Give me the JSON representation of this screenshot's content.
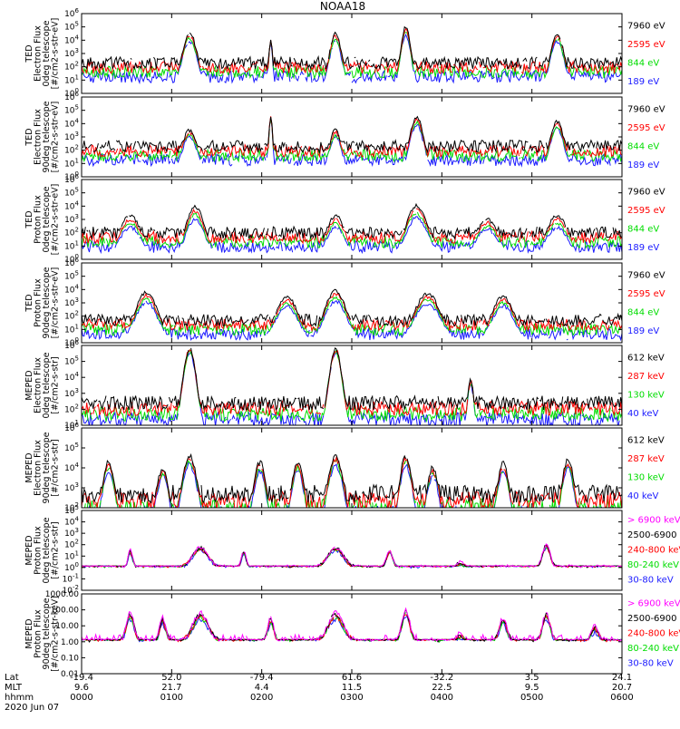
{
  "title": "NOAA18",
  "colors": {
    "blue": "#1a1aff",
    "red": "#ff0000",
    "green": "#00dd00",
    "black": "#000000",
    "magenta": "#ff00ff"
  },
  "chart_data": [
    {
      "type": "line",
      "ylabel_lines": [
        "TED",
        "Electron Flux",
        "0deg telescope",
        "[#/cm2-s-str-eV]"
      ],
      "y_ticks": [
        "10^0",
        "10^1",
        "10^2",
        "10^3",
        "10^4",
        "10^5",
        "10^6"
      ],
      "ylim": [
        1,
        1000000
      ],
      "log_scale": true,
      "series": [
        {
          "name": "7960 eV",
          "color": "#000000"
        },
        {
          "name": "2595 eV",
          "color": "#ff0000"
        },
        {
          "name": "844 eV",
          "color": "#00dd00"
        },
        {
          "name": "189 eV",
          "color": "#1a1aff"
        }
      ],
      "baseline": 2.3,
      "peaks": [
        [
          0.2,
          4.5,
          0.022,
          0.8
        ],
        [
          0.35,
          4.0,
          0.006,
          0.3
        ],
        [
          0.47,
          4.5,
          0.018,
          0.8
        ],
        [
          0.6,
          5.0,
          0.015,
          0.8
        ],
        [
          0.88,
          4.5,
          0.02,
          0.8
        ]
      ]
    },
    {
      "type": "line",
      "ylabel_lines": [
        "TED",
        "Electron Flux",
        "90deg telescope",
        "[#/cm2-s-str-eV]"
      ],
      "y_ticks": [
        "10^0",
        "10^1",
        "10^2",
        "10^3",
        "10^4",
        "10^5",
        "10^6"
      ],
      "ylim": [
        1,
        1000000
      ],
      "log_scale": true,
      "series": [
        {
          "name": "7960 eV",
          "color": "#000000"
        },
        {
          "name": "2595 eV",
          "color": "#ff0000"
        },
        {
          "name": "844 eV",
          "color": "#00dd00"
        },
        {
          "name": "189 eV",
          "color": "#1a1aff"
        }
      ],
      "baseline": 2.3,
      "peaks": [
        [
          0.2,
          3.5,
          0.022,
          0.7
        ],
        [
          0.35,
          4.5,
          0.006,
          0.4
        ],
        [
          0.47,
          3.5,
          0.018,
          0.7
        ],
        [
          0.62,
          4.5,
          0.02,
          0.8
        ],
        [
          0.88,
          4.2,
          0.02,
          0.8
        ]
      ]
    },
    {
      "type": "line",
      "ylabel_lines": [
        "TED",
        "Proton Flux",
        "0deg telescope",
        "[#/cm2-s-str-eV]"
      ],
      "y_ticks": [
        "10^0",
        "10^1",
        "10^2",
        "10^3",
        "10^4",
        "10^5",
        "10^6"
      ],
      "ylim": [
        1,
        1000000
      ],
      "log_scale": true,
      "series": [
        {
          "name": "7960 eV",
          "color": "#000000"
        },
        {
          "name": "2595 eV",
          "color": "#ff0000"
        },
        {
          "name": "844 eV",
          "color": "#00dd00"
        },
        {
          "name": "189 eV",
          "color": "#1a1aff"
        }
      ],
      "baseline": 2.0,
      "peaks": [
        [
          0.09,
          3.3,
          0.03,
          1.2
        ],
        [
          0.21,
          4.0,
          0.025,
          1.3
        ],
        [
          0.47,
          3.3,
          0.025,
          1.2
        ],
        [
          0.62,
          4.0,
          0.03,
          1.2
        ],
        [
          0.75,
          3.0,
          0.03,
          1.0
        ],
        [
          0.88,
          3.3,
          0.03,
          1.2
        ]
      ]
    },
    {
      "type": "line",
      "ylabel_lines": [
        "TED",
        "Proton Flux",
        "90deg telescope",
        "[#/cm2-s-str-eV]"
      ],
      "y_ticks": [
        "10^0",
        "10^1",
        "10^2",
        "10^3",
        "10^4",
        "10^5",
        "10^6"
      ],
      "ylim": [
        1,
        1000000
      ],
      "log_scale": true,
      "series": [
        {
          "name": "7960 eV",
          "color": "#000000"
        },
        {
          "name": "2595 eV",
          "color": "#ff0000"
        },
        {
          "name": "844 eV",
          "color": "#00dd00"
        },
        {
          "name": "189 eV",
          "color": "#1a1aff"
        }
      ],
      "baseline": 1.7,
      "peaks": [
        [
          0.12,
          3.8,
          0.03,
          1.0
        ],
        [
          0.38,
          3.5,
          0.03,
          1.0
        ],
        [
          0.47,
          3.9,
          0.03,
          1.0
        ],
        [
          0.64,
          3.7,
          0.035,
          1.0
        ],
        [
          0.78,
          3.5,
          0.03,
          1.0
        ]
      ]
    },
    {
      "type": "line",
      "ylabel_lines": [
        "MEPED",
        "Electron Flux",
        "0deg telescope",
        "[#/cm2-s-str]"
      ],
      "y_ticks": [
        "10^1",
        "10^2",
        "10^3",
        "10^4",
        "10^5",
        "10^6"
      ],
      "ylim": [
        10,
        1000000
      ],
      "log_scale": true,
      "series": [
        {
          "name": "612 keV",
          "color": "#000000"
        },
        {
          "name": "287 keV",
          "color": "#ff0000"
        },
        {
          "name": "130 keV",
          "color": "#00dd00"
        },
        {
          "name": "40 keV",
          "color": "#1a1aff"
        }
      ],
      "baseline": 2.4,
      "peaks": [
        [
          0.2,
          5.8,
          0.02,
          0.3
        ],
        [
          0.47,
          5.8,
          0.02,
          0.3
        ],
        [
          0.72,
          3.8,
          0.01,
          0.3
        ]
      ]
    },
    {
      "type": "line",
      "ylabel_lines": [
        "MEPED",
        "Electron Flux",
        "90deg telescope",
        "[#/cm2-s-str]"
      ],
      "y_ticks": [
        "10^2",
        "10^3",
        "10^4",
        "10^5",
        "10^6"
      ],
      "ylim": [
        100,
        1000000
      ],
      "log_scale": true,
      "series": [
        {
          "name": "612 keV",
          "color": "#000000"
        },
        {
          "name": "287 keV",
          "color": "#ff0000"
        },
        {
          "name": "130 keV",
          "color": "#00dd00"
        },
        {
          "name": "40 keV",
          "color": "#1a1aff"
        }
      ],
      "baseline": 2.7,
      "peaks": [
        [
          0.05,
          4.3,
          0.02,
          0.6
        ],
        [
          0.15,
          4.0,
          0.02,
          0.6
        ],
        [
          0.2,
          4.6,
          0.025,
          0.6
        ],
        [
          0.33,
          4.3,
          0.02,
          0.6
        ],
        [
          0.4,
          4.3,
          0.02,
          0.6
        ],
        [
          0.47,
          4.6,
          0.025,
          0.6
        ],
        [
          0.6,
          4.6,
          0.02,
          0.6
        ],
        [
          0.65,
          4.0,
          0.02,
          0.6
        ],
        [
          0.78,
          4.2,
          0.02,
          0.6
        ],
        [
          0.9,
          4.4,
          0.02,
          0.6
        ]
      ]
    },
    {
      "type": "line",
      "ylabel_lines": [
        "MEPED",
        "Proton Flux",
        "0deg telescope",
        "[#/cm2-s-str]"
      ],
      "y_ticks": [
        "10^-2",
        "10^-1",
        "10^0",
        "10^1",
        "10^2",
        "10^3",
        "10^4",
        "10^5"
      ],
      "ylim": [
        0.01,
        100000
      ],
      "log_scale": true,
      "series": [
        {
          "name": "> 6900 keV",
          "color": "#ff00ff"
        },
        {
          "name": "2500-6900",
          "color": "#000000"
        },
        {
          "name": "240-800 keV",
          "color": "#ff0000"
        },
        {
          "name": "80-240 keV",
          "color": "#00dd00"
        },
        {
          "name": "30-80 keV",
          "color": "#1a1aff"
        }
      ],
      "baseline": -0.2,
      "peaks": [
        [
          0.09,
          1.5,
          0.006,
          0.3
        ],
        [
          0.22,
          1.8,
          0.02,
          0.3
        ],
        [
          0.3,
          1.5,
          0.006,
          0.3
        ],
        [
          0.47,
          1.8,
          0.02,
          0.3
        ],
        [
          0.57,
          1.5,
          0.008,
          0.3
        ],
        [
          0.7,
          0.5,
          0.01,
          0.3
        ],
        [
          0.86,
          2.0,
          0.01,
          0.3
        ]
      ]
    },
    {
      "type": "line",
      "ylabel_lines": [
        "MEPED",
        "Proton Flux",
        "90deg telescope",
        "[#/cm2-s-str-keV]"
      ],
      "y_ticks": [
        "0.01",
        "0.10",
        "1.00",
        "10.00",
        "100.00",
        "1000.00"
      ],
      "ylim": [
        0.01,
        1000
      ],
      "log_scale": true,
      "series": [
        {
          "name": "> 6900 keV",
          "color": "#ff00ff"
        },
        {
          "name": "2500-6900",
          "color": "#000000"
        },
        {
          "name": "240-800 keV",
          "color": "#ff0000"
        },
        {
          "name": "80-240 keV",
          "color": "#00dd00"
        },
        {
          "name": "30-80 keV",
          "color": "#1a1aff"
        }
      ],
      "baseline": 0.0,
      "peaks": [
        [
          0.09,
          1.8,
          0.01,
          0.4
        ],
        [
          0.15,
          1.5,
          0.008,
          0.4
        ],
        [
          0.22,
          1.8,
          0.02,
          0.4
        ],
        [
          0.35,
          1.5,
          0.008,
          0.4
        ],
        [
          0.47,
          1.8,
          0.02,
          0.4
        ],
        [
          0.6,
          2.0,
          0.01,
          0.4
        ],
        [
          0.7,
          0.5,
          0.01,
          0.3
        ],
        [
          0.78,
          1.5,
          0.01,
          0.4
        ],
        [
          0.86,
          1.8,
          0.01,
          0.4
        ],
        [
          0.95,
          1.0,
          0.01,
          0.4
        ]
      ]
    }
  ],
  "x_axis": {
    "row_labels": [
      "Lat",
      "MLT",
      "hhmm",
      "2020 Jun 07"
    ],
    "ticks": [
      {
        "lat": "-19.4",
        "mlt": "9.6",
        "time": "0000"
      },
      {
        "lat": "52.0",
        "mlt": "21.7",
        "time": "0100"
      },
      {
        "lat": "-79.4",
        "mlt": "4.4",
        "time": "0200"
      },
      {
        "lat": "61.6",
        "mlt": "11.5",
        "time": "0300"
      },
      {
        "lat": "-32.2",
        "mlt": "22.5",
        "time": "0400"
      },
      {
        "lat": "3.5",
        "mlt": "9.5",
        "time": "0500"
      },
      {
        "lat": "24.1",
        "mlt": "20.7",
        "time": "0600"
      }
    ]
  }
}
